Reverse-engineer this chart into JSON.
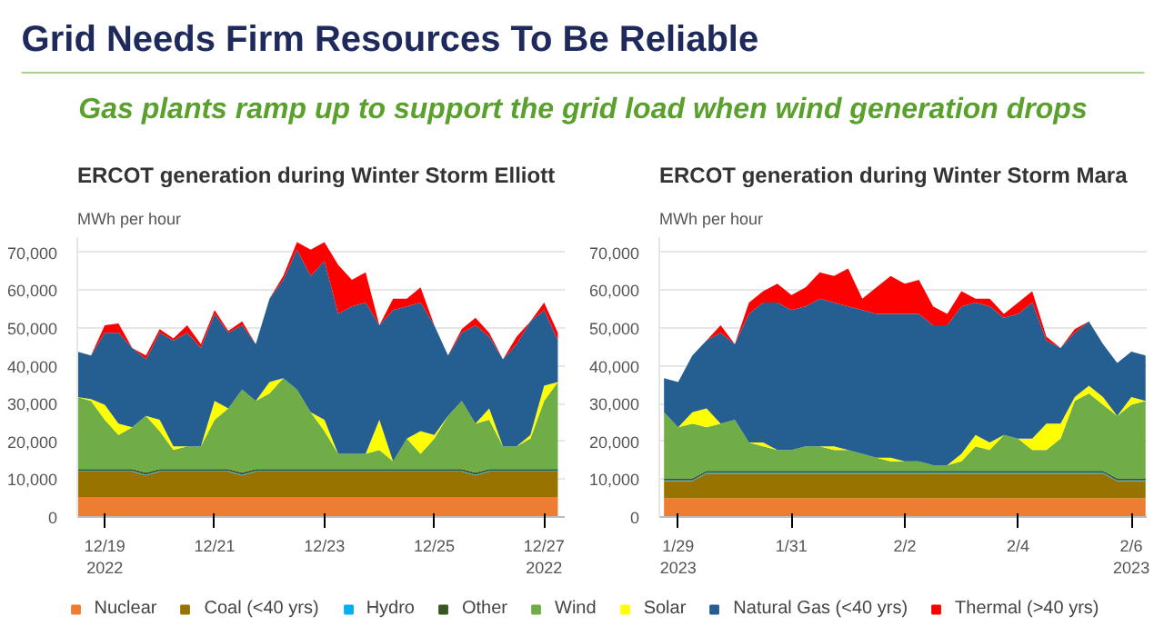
{
  "chart_data": [
    {
      "type": "other",
      "title": "Grid Needs Firm Resources To Be Reliable",
      "subtitle": "Gas plants ramp up to support the grid load when wind generation drops"
    },
    {
      "type": "area",
      "stacked": true,
      "title": "ERCOT generation during Winter Storm Elliott",
      "ylabel": "MWh per hour",
      "grid": "y",
      "legend": "bottom",
      "x": [
        "2022-12-18T12:00",
        "2022-12-18T18:00",
        "2022-12-19T00:00",
        "2022-12-19T06:00",
        "2022-12-19T12:00",
        "2022-12-19T18:00",
        "2022-12-20T00:00",
        "2022-12-20T06:00",
        "2022-12-20T12:00",
        "2022-12-20T18:00",
        "2022-12-21T00:00",
        "2022-12-21T06:00",
        "2022-12-21T12:00",
        "2022-12-21T18:00",
        "2022-12-22T00:00",
        "2022-12-22T06:00",
        "2022-12-22T12:00",
        "2022-12-22T18:00",
        "2022-12-23T00:00",
        "2022-12-23T06:00",
        "2022-12-23T12:00",
        "2022-12-23T18:00",
        "2022-12-24T00:00",
        "2022-12-24T06:00",
        "2022-12-24T12:00",
        "2022-12-24T18:00",
        "2022-12-25T00:00",
        "2022-12-25T06:00",
        "2022-12-25T12:00",
        "2022-12-25T18:00",
        "2022-12-26T00:00",
        "2022-12-26T06:00",
        "2022-12-26T12:00",
        "2022-12-26T18:00",
        "2022-12-27T00:00",
        "2022-12-27T06:00"
      ],
      "xlim": [
        "2022-12-18T12:00",
        "2022-12-27T09:00"
      ],
      "xticks": [
        {
          "value": "2022-12-19",
          "label": "12/19\n2022"
        },
        {
          "value": "2022-12-21",
          "label": "12/21"
        },
        {
          "value": "2022-12-23",
          "label": "12/23"
        },
        {
          "value": "2022-12-25",
          "label": "12/25"
        },
        {
          "value": "2022-12-27",
          "label": "12/27\n2022"
        }
      ],
      "ylim": [
        0,
        74000
      ],
      "yticks": [
        0,
        {
          "value": 10000,
          "label": "10,000"
        },
        {
          "value": 20000,
          "label": "20,000"
        },
        {
          "value": 30000,
          "label": "30,000"
        },
        {
          "value": 40000,
          "label": "40,000"
        },
        {
          "value": 50000,
          "label": "50,000"
        },
        {
          "value": 60000,
          "label": "60,000"
        },
        {
          "value": 70000,
          "label": "70,000"
        }
      ],
      "series": [
        {
          "name": "Nuclear",
          "color": "#ed7d31",
          "values": [
            5300,
            5300,
            5300,
            5300,
            5300,
            5300,
            5300,
            5300,
            5300,
            5300,
            5300,
            5300,
            5300,
            5300,
            5300,
            5300,
            5300,
            5300,
            5300,
            5300,
            5300,
            5300,
            5300,
            5300,
            5300,
            5300,
            5300,
            5300,
            5300,
            5300,
            5300,
            5300,
            5300,
            5300,
            5300,
            5300
          ]
        },
        {
          "name": "Coal (<40 yrs)",
          "color": "#997300",
          "values": [
            6700,
            6700,
            6700,
            6700,
            6700,
            5700,
            6700,
            6700,
            6700,
            6700,
            6700,
            6700,
            5700,
            6700,
            6700,
            6700,
            6700,
            6700,
            6700,
            6700,
            6700,
            6700,
            6700,
            6700,
            6700,
            6700,
            6700,
            6700,
            6700,
            5700,
            6700,
            6700,
            6700,
            6700,
            6700,
            6700
          ]
        },
        {
          "name": "Hydro",
          "color": "#00b0f0",
          "values": [
            200,
            200,
            200,
            200,
            200,
            200,
            200,
            200,
            200,
            200,
            200,
            200,
            200,
            200,
            200,
            200,
            200,
            200,
            200,
            200,
            200,
            200,
            200,
            200,
            200,
            200,
            200,
            200,
            200,
            200,
            200,
            200,
            200,
            200,
            200,
            200
          ]
        },
        {
          "name": "Other",
          "color": "#375623",
          "values": [
            500,
            500,
            500,
            500,
            500,
            500,
            500,
            500,
            500,
            500,
            500,
            500,
            500,
            500,
            500,
            500,
            500,
            500,
            500,
            500,
            500,
            500,
            500,
            500,
            500,
            500,
            500,
            500,
            500,
            500,
            500,
            500,
            500,
            500,
            500,
            500
          ]
        },
        {
          "name": "Wind",
          "color": "#70ad47",
          "values": [
            19000,
            18000,
            13000,
            9000,
            11000,
            15000,
            10000,
            5000,
            6000,
            6000,
            13000,
            16000,
            22000,
            18000,
            20000,
            24000,
            21000,
            15000,
            10000,
            4000,
            4000,
            4000,
            5000,
            2000,
            8000,
            4000,
            8000,
            14000,
            18000,
            13000,
            13000,
            6000,
            6000,
            8000,
            18000,
            23000
          ]
        },
        {
          "name": "Solar",
          "color": "#ffff00",
          "values": [
            0,
            500,
            4000,
            3000,
            0,
            0,
            3000,
            1000,
            0,
            0,
            5000,
            0,
            0,
            0,
            3000,
            0,
            0,
            0,
            3000,
            0,
            0,
            0,
            8000,
            0,
            0,
            6000,
            1000,
            0,
            0,
            0,
            3000,
            0,
            0,
            1000,
            4000,
            0
          ]
        },
        {
          "name": "Natural Gas (<40 yrs)",
          "color": "#255e91",
          "values": [
            12000,
            11500,
            19000,
            24000,
            21000,
            15000,
            23000,
            28000,
            30000,
            26000,
            23000,
            20000,
            17000,
            15000,
            22000,
            26000,
            37000,
            36000,
            42000,
            37000,
            39000,
            40000,
            25000,
            40000,
            35000,
            34000,
            29000,
            16000,
            18000,
            26000,
            19000,
            23000,
            27000,
            30000,
            20000,
            11000
          ]
        },
        {
          "name": "Thermal (>40 yrs)",
          "color": "#ff0000",
          "values": [
            0,
            0,
            2000,
            2500,
            0,
            1000,
            1000,
            500,
            2000,
            1000,
            1000,
            500,
            1000,
            0,
            0,
            1000,
            2000,
            7000,
            5000,
            13000,
            7000,
            8000,
            0,
            3000,
            2000,
            4000,
            0,
            0,
            1000,
            2000,
            1000,
            0,
            2000,
            0,
            2000,
            2000
          ]
        }
      ]
    },
    {
      "type": "area",
      "stacked": true,
      "title": "ERCOT generation during Winter Storm Mara",
      "ylabel": "MWh per hour",
      "grid": "y",
      "x": [
        "2023-01-28T18:00",
        "2023-01-29T00:00",
        "2023-01-29T06:00",
        "2023-01-29T12:00",
        "2023-01-29T18:00",
        "2023-01-30T00:00",
        "2023-01-30T06:00",
        "2023-01-30T12:00",
        "2023-01-30T18:00",
        "2023-01-31T00:00",
        "2023-01-31T06:00",
        "2023-01-31T12:00",
        "2023-01-31T18:00",
        "2023-02-01T00:00",
        "2023-02-01T06:00",
        "2023-02-01T12:00",
        "2023-02-01T18:00",
        "2023-02-02T00:00",
        "2023-02-02T06:00",
        "2023-02-02T12:00",
        "2023-02-02T18:00",
        "2023-02-03T00:00",
        "2023-02-03T06:00",
        "2023-02-03T12:00",
        "2023-02-03T18:00",
        "2023-02-04T00:00",
        "2023-02-04T06:00",
        "2023-02-04T12:00",
        "2023-02-04T18:00",
        "2023-02-05T00:00",
        "2023-02-05T06:00",
        "2023-02-05T12:00",
        "2023-02-05T18:00",
        "2023-02-06T00:00",
        "2023-02-06T06:00"
      ],
      "xlim": [
        "2023-01-28T16:00",
        "2023-02-06T06:30"
      ],
      "xticks": [
        {
          "value": "2023-01-29",
          "label": "1/29\n2023"
        },
        {
          "value": "2023-01-31",
          "label": "1/31"
        },
        {
          "value": "2023-02-02",
          "label": "2/2"
        },
        {
          "value": "2023-02-04",
          "label": "2/4"
        },
        {
          "value": "2023-02-06",
          "label": "2/6\n2023"
        }
      ],
      "ylim": [
        0,
        74000
      ],
      "yticks": [
        0,
        {
          "value": 10000,
          "label": "10,000"
        },
        {
          "value": 20000,
          "label": "20,000"
        },
        {
          "value": 30000,
          "label": "30,000"
        },
        {
          "value": 40000,
          "label": "40,000"
        },
        {
          "value": 50000,
          "label": "50,000"
        },
        {
          "value": 60000,
          "label": "60,000"
        },
        {
          "value": 70000,
          "label": "70,000"
        }
      ],
      "series": [
        {
          "color": "#ed7d31",
          "values": [
            4900,
            4900,
            4900,
            4900,
            4900,
            4900,
            4900,
            4900,
            4900,
            4900,
            4900,
            4900,
            4900,
            4900,
            4900,
            4900,
            4900,
            4900,
            4900,
            4900,
            4900,
            4900,
            4900,
            4900,
            4900,
            4900,
            4900,
            4900,
            4900,
            4900,
            4900,
            4900,
            4900,
            4900,
            4900
          ]
        },
        {
          "color": "#997300",
          "values": [
            4600,
            4600,
            4600,
            6600,
            6600,
            6600,
            6600,
            6600,
            6600,
            6600,
            6600,
            6600,
            6600,
            6600,
            6600,
            6600,
            6600,
            6600,
            6600,
            6600,
            6600,
            6600,
            6600,
            6600,
            6600,
            6600,
            6600,
            6600,
            6600,
            6600,
            6600,
            6600,
            4600,
            4600,
            4600
          ]
        },
        {
          "color": "#00b0f0",
          "values": [
            200,
            200,
            200,
            200,
            200,
            200,
            200,
            200,
            200,
            200,
            200,
            200,
            200,
            200,
            200,
            200,
            200,
            200,
            200,
            200,
            200,
            200,
            200,
            200,
            200,
            200,
            200,
            200,
            200,
            200,
            200,
            200,
            200,
            200,
            200
          ]
        },
        {
          "color": "#375623",
          "values": [
            500,
            500,
            500,
            500,
            500,
            500,
            500,
            500,
            500,
            500,
            500,
            500,
            500,
            500,
            500,
            500,
            500,
            500,
            500,
            500,
            500,
            500,
            500,
            500,
            500,
            500,
            500,
            500,
            500,
            500,
            500,
            500,
            500,
            500,
            500
          ]
        },
        {
          "color": "#70ad47",
          "values": [
            17500,
            13500,
            14500,
            11500,
            12500,
            13500,
            7500,
            6500,
            5500,
            5500,
            6500,
            6500,
            5500,
            5500,
            4500,
            3500,
            2500,
            2500,
            2500,
            1500,
            1500,
            2500,
            6500,
            5500,
            9500,
            8500,
            5500,
            5500,
            8500,
            18500,
            20500,
            17500,
            16500,
            19500,
            20500
          ]
        },
        {
          "color": "#ffff00",
          "values": [
            0,
            0,
            3000,
            5000,
            0,
            0,
            0,
            1000,
            0,
            0,
            0,
            0,
            1000,
            0,
            0,
            0,
            1000,
            0,
            0,
            0,
            0,
            2000,
            3000,
            2000,
            0,
            0,
            3000,
            7000,
            4000,
            1000,
            2000,
            2000,
            0,
            2000,
            0
          ]
        },
        {
          "color": "#255e91",
          "values": [
            9000,
            12000,
            15000,
            18000,
            24000,
            20000,
            34000,
            37000,
            39000,
            37000,
            37000,
            39000,
            38000,
            38000,
            38000,
            38000,
            38000,
            39000,
            39000,
            37000,
            37000,
            39000,
            35000,
            36000,
            31000,
            33000,
            36000,
            22000,
            20000,
            17000,
            17000,
            14000,
            14000,
            12000,
            12000
          ]
        },
        {
          "color": "#ff0000",
          "values": [
            0,
            0,
            0,
            0,
            2000,
            0,
            3000,
            3000,
            5000,
            4000,
            5000,
            7000,
            7000,
            10000,
            3000,
            7000,
            10000,
            8000,
            9000,
            5000,
            3000,
            4000,
            1000,
            2000,
            1000,
            3000,
            3000,
            1000,
            0,
            1000,
            0,
            0,
            0,
            0,
            0
          ]
        }
      ]
    }
  ]
}
